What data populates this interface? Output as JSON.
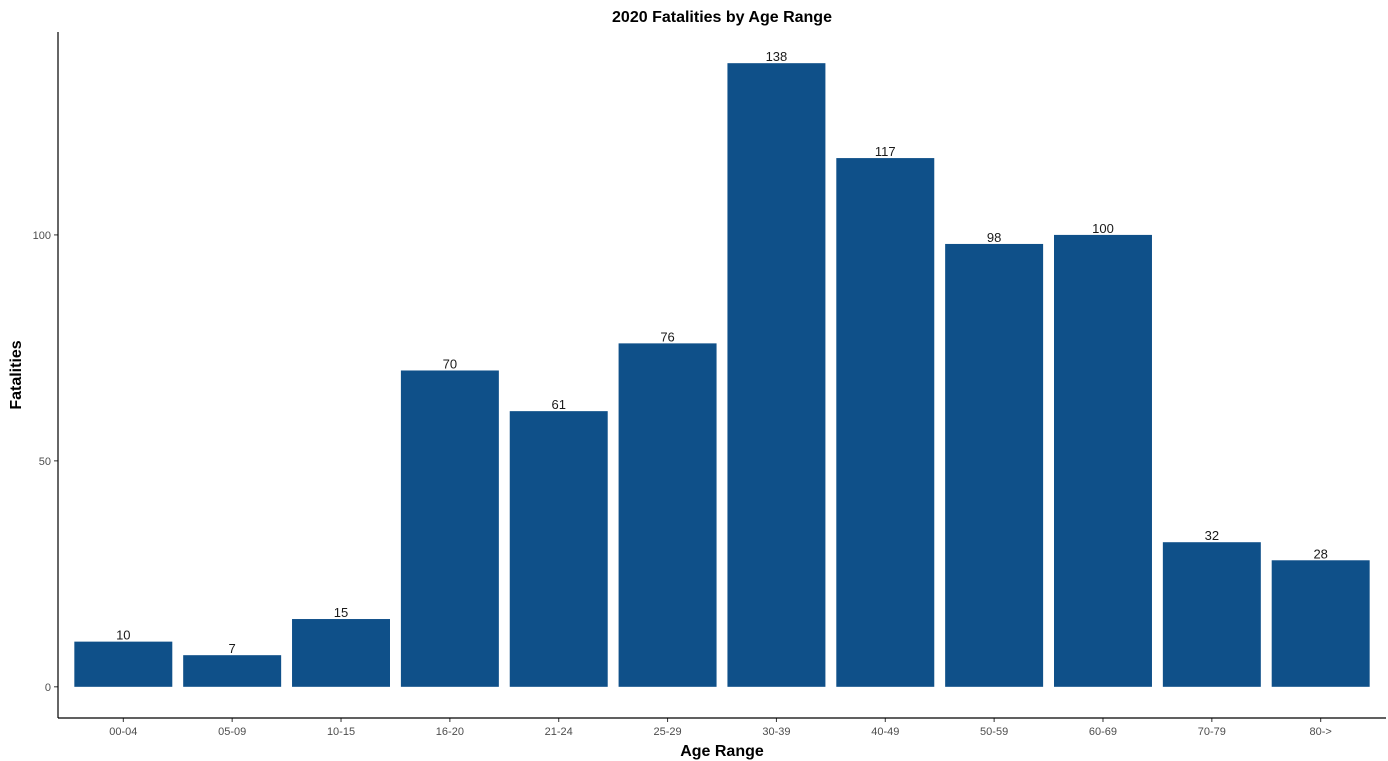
{
  "chart_data": {
    "type": "bar",
    "title": "2020 Fatalities by Age Range",
    "xlabel": "Age Range",
    "ylabel": "Fatalities",
    "categories": [
      "00-04",
      "05-09",
      "10-15",
      "16-20",
      "21-24",
      "25-29",
      "30-39",
      "40-49",
      "50-59",
      "60-69",
      "70-79",
      "80->"
    ],
    "values": [
      10,
      7,
      15,
      70,
      61,
      76,
      138,
      117,
      98,
      100,
      32,
      28
    ],
    "data_labels": [
      "10",
      "7",
      "15",
      "70",
      "61",
      "76",
      "138",
      "117",
      "98",
      "100",
      "32",
      "28"
    ],
    "yticks": [
      0,
      50,
      100
    ],
    "ytick_labels": [
      "0",
      "50",
      "100"
    ],
    "ylim": [
      -6.9,
      144.9
    ],
    "grid": false,
    "legend": "none",
    "bar_color": "#0f5089",
    "axis_color": "#000000"
  }
}
